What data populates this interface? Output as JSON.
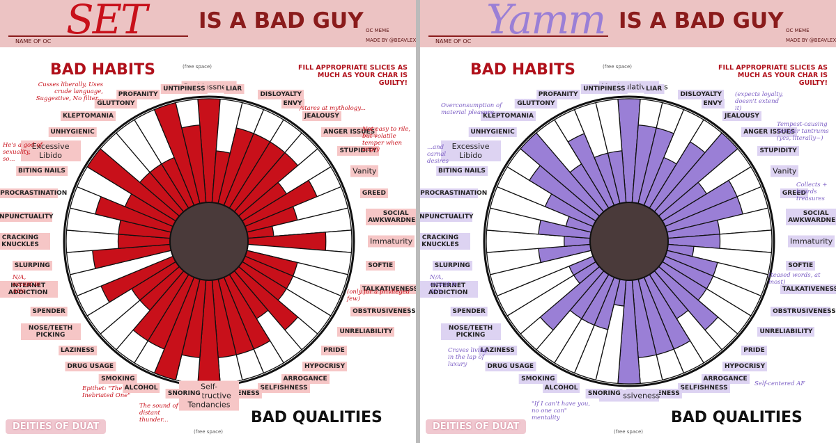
{
  "chart_data": [
    {
      "type": "polar-bar",
      "title": "SET",
      "subtitle": "IS A BAD GUY",
      "name_label": "NAME OF OC",
      "credit_1": "OC MEME",
      "credit_2": "MADE BY @BEAVLEX",
      "left_heading": "BAD HABITS",
      "right_heading": "BAD QUALITIES",
      "instruction": "FILL APPROPRIATE SLICES AS MUCH AS YOUR CHAR IS GUILTY!",
      "logo": "DEITIES OF DUAT",
      "free_space": [
        "(free space)",
        "(free space)"
      ],
      "color": "#c8101a",
      "label_color": "#f6c6c6",
      "name_color": "#c8101a",
      "accent": "#c8101a",
      "rlim": [
        0,
        4
      ],
      "categories": [
        "Recklessness",
        "LIAR",
        "DISLOYALTY",
        "ENVY",
        "JEALOUSY",
        "ANGER ISSUES",
        "STUPIDITY",
        "Vanity",
        "GREED",
        "SOCIAL AWKWARDNESS",
        "Immaturity",
        "SOFTIE",
        "TALKATIVENESS",
        "OBSTRUSIVENESS",
        "UNRELIABILITY",
        "PRIDE",
        "HYPOCRISY",
        "ARROGANCE",
        "SELFISHNESS",
        "IMPOLITENESS",
        "Self-Destructive Tendancies",
        "SNORING",
        "ALCOHOL",
        "SMOKING",
        "DRUG USAGE",
        "LAZINESS",
        "NOSE/TEETH PICKING",
        "SPENDER",
        "INTERNET ADDICTION",
        "SLURPING",
        "CRACKING KNUCKLES",
        "UNPUNCTUALITY",
        "PROCRASTINATION",
        "BITING NAILS",
        "Excessive Libido",
        "UNHYGIENIC",
        "KLEPTOMANIA",
        "GLUTTONY",
        "PROFANITY",
        "UNTIPINESS"
      ],
      "values": [
        4,
        2,
        3,
        3,
        3,
        3,
        2,
        3,
        2,
        1,
        3,
        0,
        2,
        2,
        2,
        3,
        2,
        3,
        3,
        3,
        4,
        3,
        4,
        3,
        3,
        2,
        2,
        3,
        0,
        3,
        2,
        2,
        3,
        2,
        4,
        2,
        2,
        2,
        4,
        3
      ],
      "annotations": [
        "Cusses liberally, Uses crude language, Suggestive, No filter...",
        "He's a god of sexuality, so...",
        "/stares at mythology...",
        "Not easy to rile, but volatile temper when angry",
        "(only for a privileged few)",
        "N/A, except in AUs",
        "Epithet: \"The Inebriated One\"",
        "The sound of distant thunder..."
      ]
    },
    {
      "type": "polar-bar",
      "title": "Yamm",
      "subtitle": "IS A BAD GUY",
      "name_label": "NAME OF OC",
      "credit_1": "OC MEME",
      "credit_2": "MADE BY @BEAVLEX",
      "left_heading": "BAD HABITS",
      "right_heading": "BAD QUALITIES",
      "instruction": "FILL APPROPRIATE SLICES AS MUCH AS YOUR CHAR IS GUILTY!",
      "logo": "DEITIES OF DUAT",
      "free_space": [
        "(free space)",
        "(free space)"
      ],
      "color": "#9a7fd6",
      "label_color": "#ddd3f2",
      "name_color": "#9a7fd6",
      "accent": "#7a5cc4",
      "rlim": [
        0,
        4
      ],
      "categories": [
        "Manipulativeness",
        "LIAR",
        "DISLOYALTY",
        "ENVY",
        "JEALOUSY",
        "ANGER ISSUES",
        "STUPIDITY",
        "Vanity",
        "GREED",
        "SOCIAL AWKWARDNESS",
        "Immaturity",
        "SOFTIE",
        "TALKATIVENESS",
        "OBSTRUSIVENESS",
        "UNRELIABILITY",
        "PRIDE",
        "HYPOCRISY",
        "ARROGANCE",
        "SELFISHNESS",
        "IMPOLITENESS",
        "Possessiveness",
        "SNORING",
        "ALCOHOL",
        "SMOKING",
        "DRUG USAGE",
        "LAZINESS",
        "NOSE/TEETH PICKING",
        "SPENDER",
        "INTERNET ADDICTION",
        "SLURPING",
        "CRACKING KNUCKLES",
        "UNPUNCTUALITY",
        "PROCRASTINATION",
        "BITING NAILS",
        "Excessive Libido",
        "UNHYGIENIC",
        "KLEPTOMANIA",
        "GLUTTONY",
        "PROFANITY",
        "UNTIPINESS"
      ],
      "values": [
        4,
        3,
        3,
        2,
        3,
        4,
        2,
        3,
        3,
        2,
        2,
        1,
        2,
        2,
        2,
        3,
        2,
        3,
        3,
        3,
        4,
        1,
        2,
        2,
        2,
        3,
        1,
        1,
        0,
        2,
        1,
        2,
        1,
        2,
        3,
        4,
        2,
        3,
        2,
        2
      ],
      "annotations": [
        "Overconsumption of material pleasure...",
        "...and carnal desires",
        "(expects loyalty, doesn't extend it)",
        "Tempest-causing Temper tantrums (yes, literally~)",
        "Collects + hoards treasures",
        "(teased words, at most)",
        "N/A, except in AUs",
        "Craves living in the lap of luxury",
        "\"If I can't have you, no one can\" mentality",
        "Self-centered AF"
      ]
    }
  ]
}
